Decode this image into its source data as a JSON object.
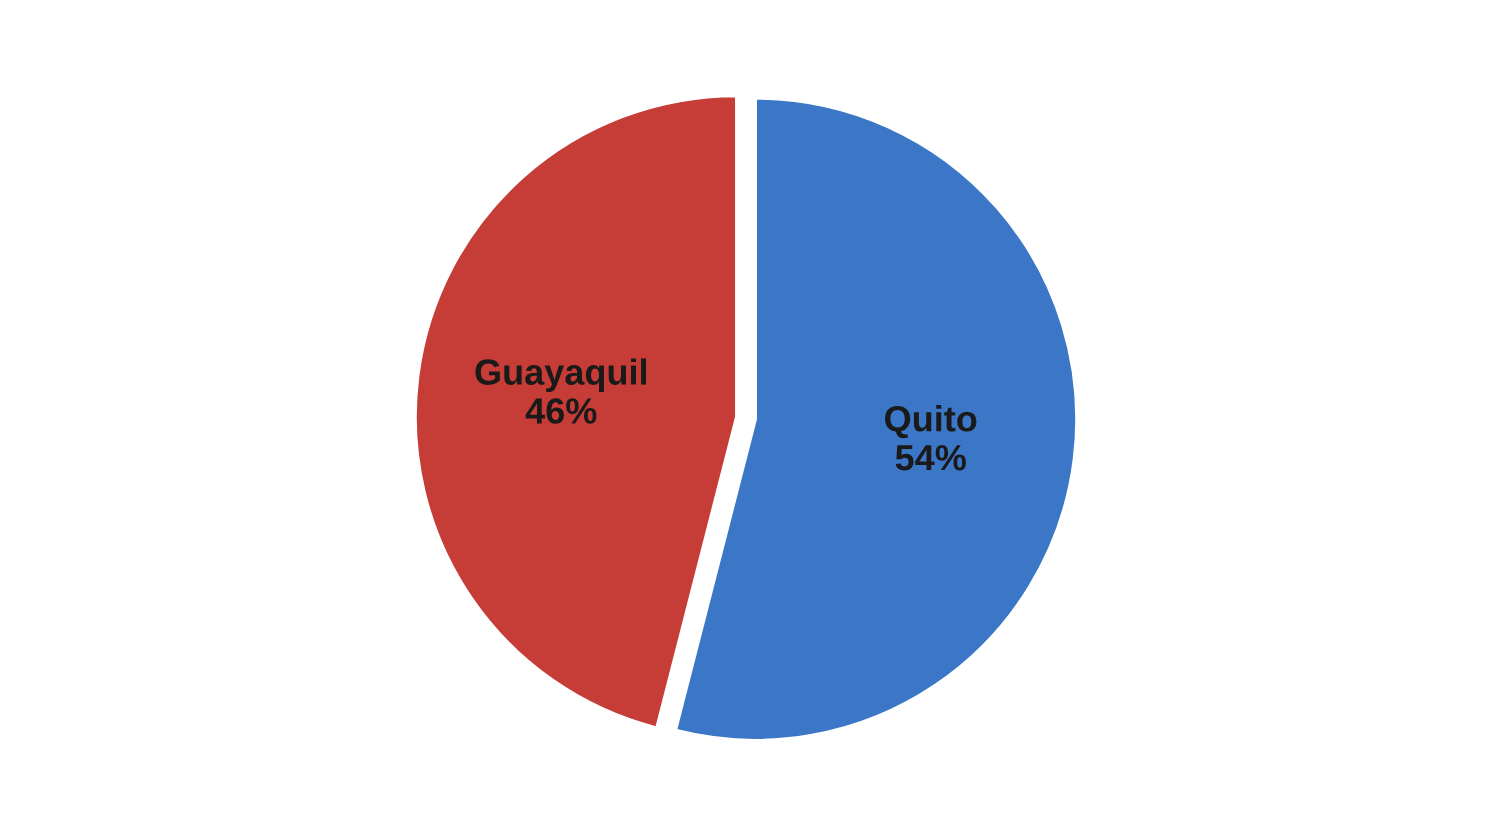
{
  "chart_data": {
    "type": "pie",
    "categories": [
      "Quito",
      "Guayaquil"
    ],
    "values": [
      54,
      46
    ],
    "value_labels": [
      "54%",
      "46%"
    ],
    "colors": [
      "#3b77c6",
      "#c63c36"
    ]
  }
}
